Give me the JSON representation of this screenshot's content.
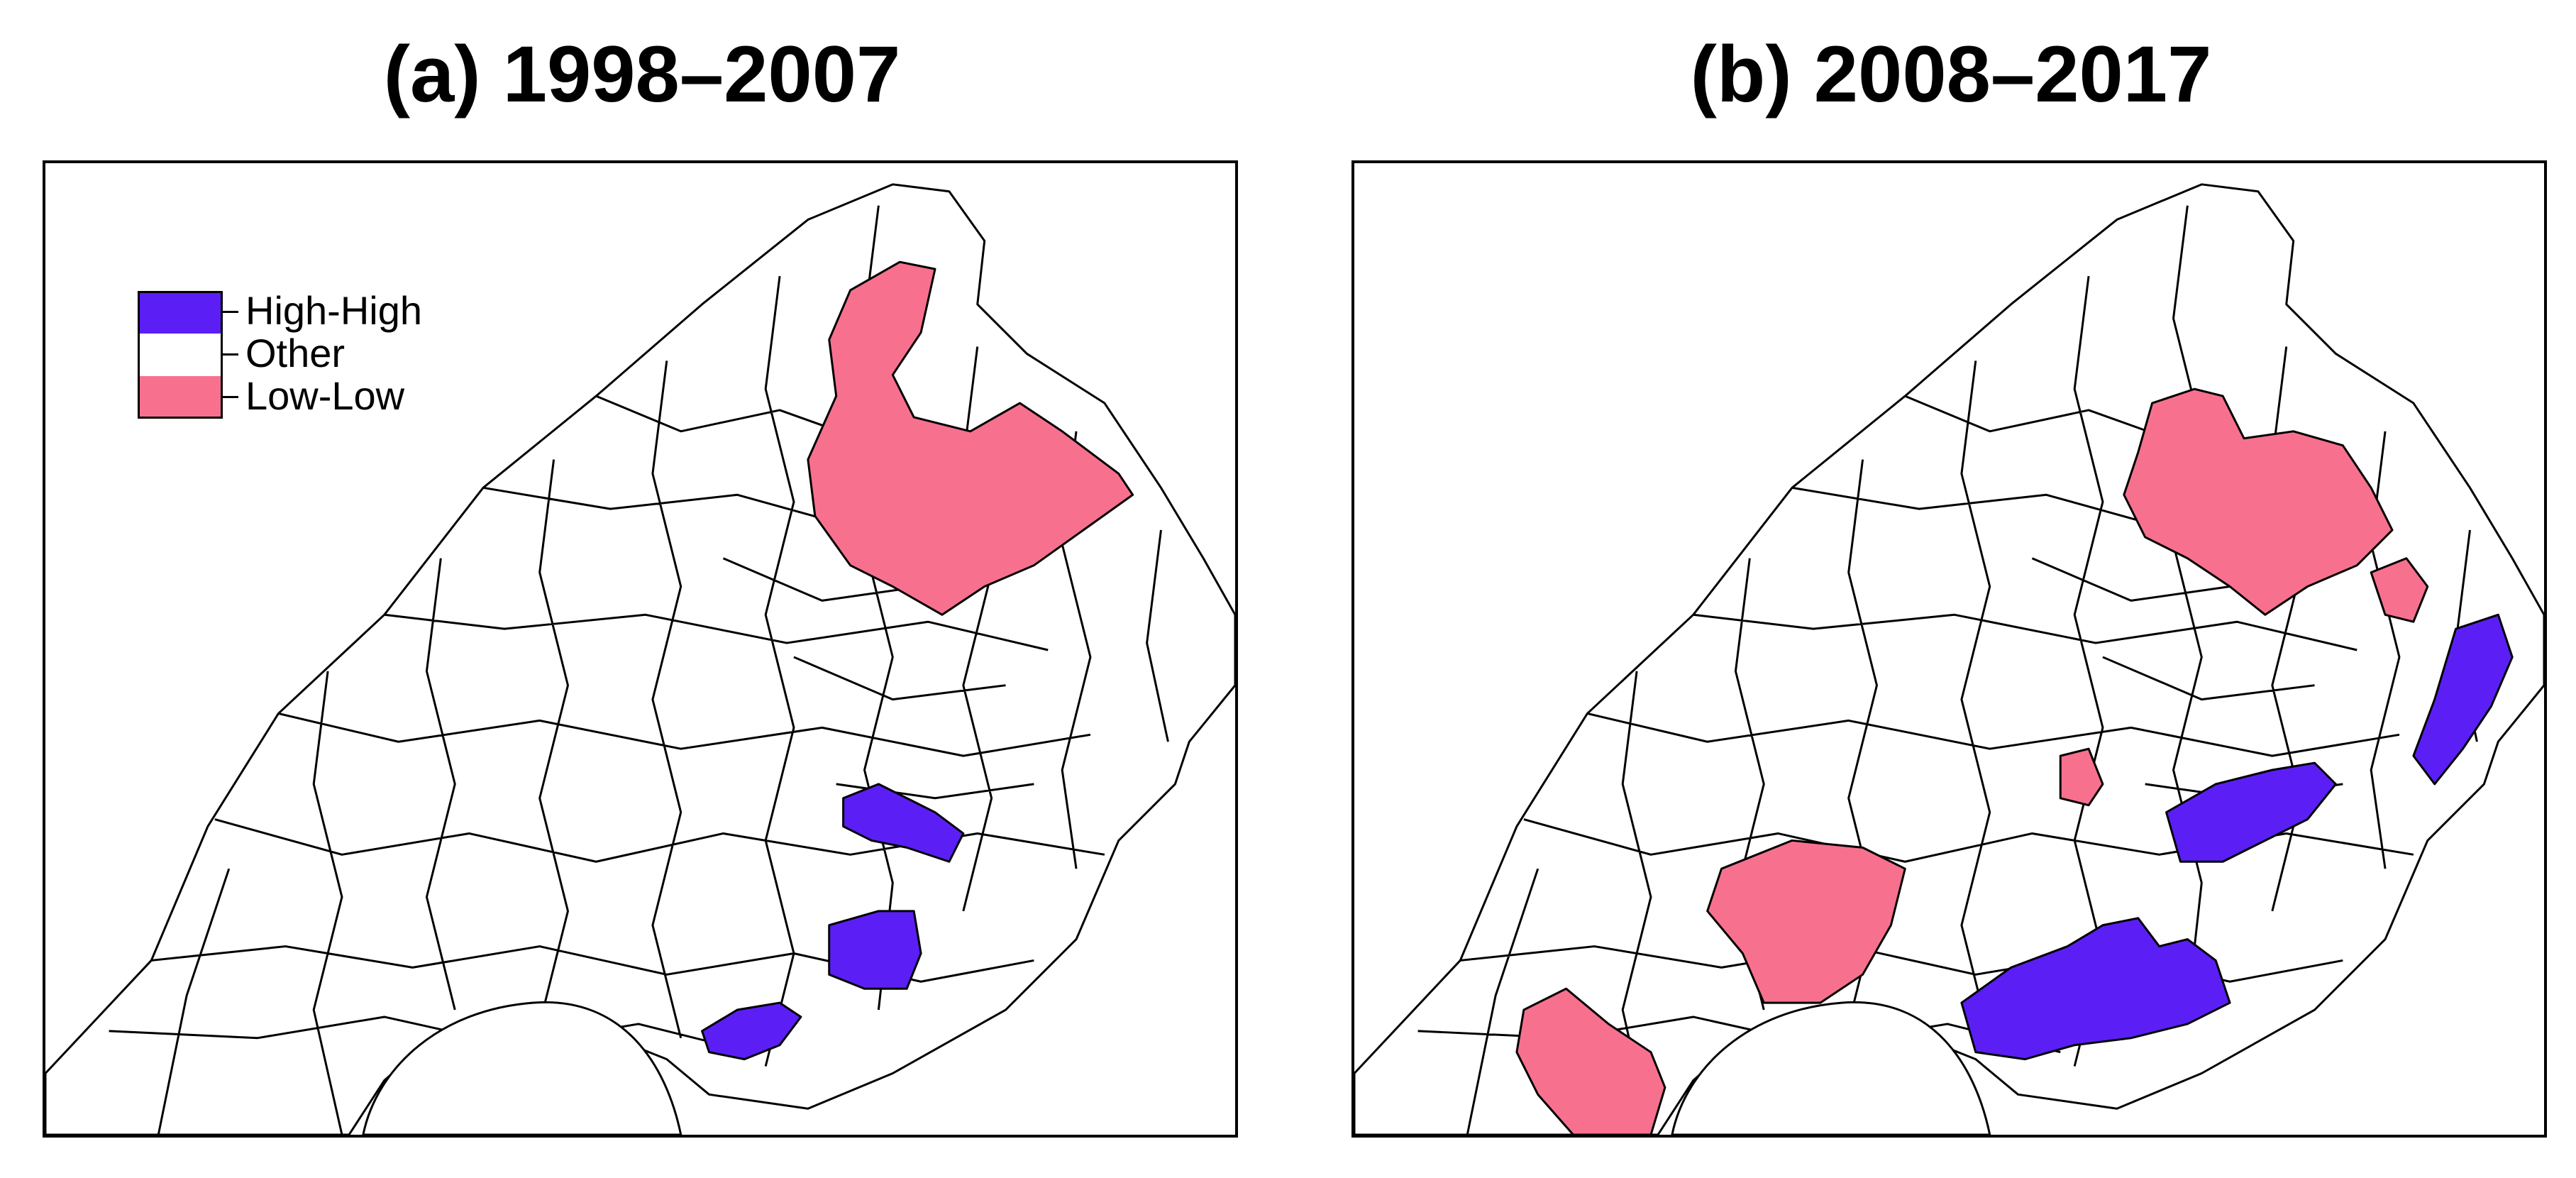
{
  "panels": [
    {
      "title": "(a) 1998–2007"
    },
    {
      "title": "(b) 2008–2017"
    }
  ],
  "legend": {
    "items": [
      {
        "label": "High-High",
        "color": "#5b1ff5"
      },
      {
        "label": "Other",
        "color": "#ffffff"
      },
      {
        "label": "Low-Low",
        "color": "#f7718f"
      }
    ]
  },
  "colors": {
    "high_high": "#5b1ff5",
    "low_low": "#f7718f",
    "other": "#ffffff",
    "boundary": "#000000"
  }
}
